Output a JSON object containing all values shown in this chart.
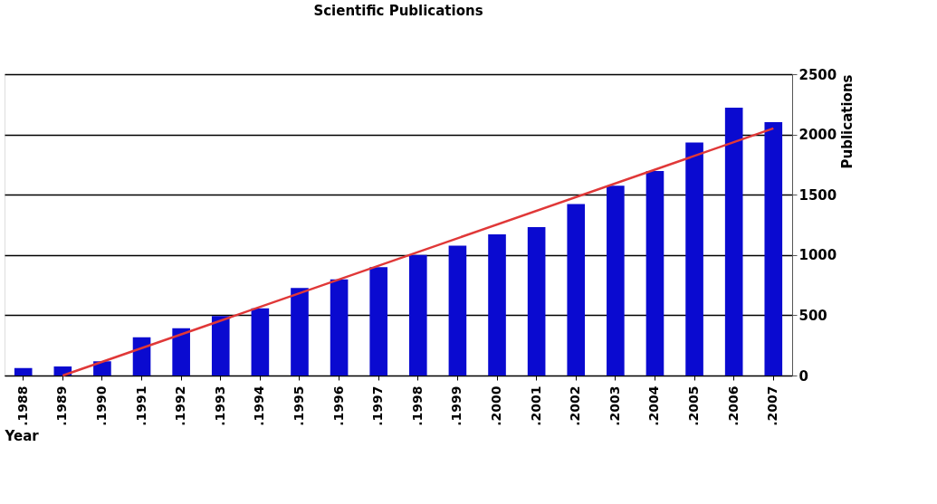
{
  "chart_data": {
    "type": "bar",
    "title": "Scientific Publications",
    "xlabel": "Year",
    "ylabel": "Publications",
    "categories": [
      ".1988",
      ".1989",
      ".1990",
      ".1991",
      ".1992",
      ".1993",
      ".1994",
      ".1995",
      ".1996",
      ".1997",
      ".1998",
      ".1999",
      ".2000",
      ".2001",
      ".2002",
      ".2003",
      ".2004",
      ".2005",
      ".2006",
      ".2007"
    ],
    "series": [
      {
        "color": "#0a0ad0",
        "values": [
          62,
          75,
          118,
          318,
          393,
          493,
          558,
          726,
          798,
          899,
          1001,
          1077,
          1172,
          1231,
          1423,
          1574,
          1697,
          1933,
          2223,
          2103
        ]
      },
      {
        "type": "line",
        "color": "#e03838",
        "x": [
          ".1989",
          ".2007"
        ],
        "values": [
          0,
          2050
        ]
      }
    ],
    "ylim": [
      0,
      2500
    ],
    "yticks": [
      0,
      500,
      1000,
      1500,
      2000,
      2500
    ],
    "grid": "y"
  }
}
